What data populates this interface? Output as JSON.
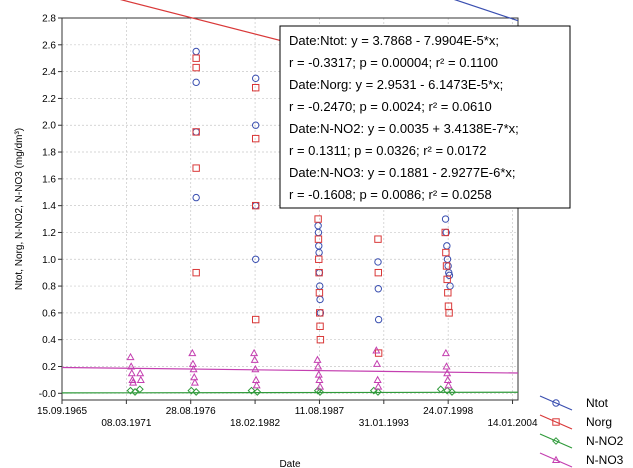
{
  "chart_data": {
    "type": "scatter",
    "xlabel": "Date",
    "ylabel": "Ntot, Norg, N-NO2, N-NO3 (mg/dm³)",
    "ylim": [
      -0.05,
      2.8
    ],
    "xlim_days": [
      -1569,
      12601
    ],
    "grid": true,
    "legend_position": "bottom-right",
    "x_ticks_top_row": [
      {
        "label": "15.09.1965",
        "x_day": -1569
      },
      {
        "label": "28.08.1976",
        "x_day": 2431
      },
      {
        "label": "11.08.1987",
        "x_day": 6431
      },
      {
        "label": "24.07.1998",
        "x_day": 10431
      }
    ],
    "x_ticks_bottom_row": [
      {
        "label": "08.03.1971",
        "x_day": 431
      },
      {
        "label": "18.02.1982",
        "x_day": 4431
      },
      {
        "label": "31.01.1993",
        "x_day": 8431
      },
      {
        "label": "14.01.2004",
        "x_day": 12431
      }
    ],
    "y_ticks": [
      "-0.0",
      "0.2",
      "0.4",
      "0.6",
      "0.8",
      "1.0",
      "1.2",
      "1.4",
      "1.6",
      "1.8",
      "2.0",
      "2.2",
      "2.4",
      "2.6",
      "2.8"
    ],
    "y_tick_values": [
      0,
      0.2,
      0.4,
      0.6,
      0.8,
      1.0,
      1.2,
      1.4,
      1.6,
      1.8,
      2.0,
      2.2,
      2.4,
      2.6,
      2.8
    ],
    "series": [
      {
        "name": "Ntot",
        "marker": "circle",
        "color": "#3a4fb0",
        "fit": {
          "intercept": 3.7868,
          "slope": -7.9904e-05
        },
        "points": [
          [
            2600,
            2.55
          ],
          [
            2600,
            2.32
          ],
          [
            2600,
            1.95
          ],
          [
            2600,
            1.46
          ],
          [
            4450,
            2.35
          ],
          [
            4450,
            2.0
          ],
          [
            4450,
            1.4
          ],
          [
            4450,
            1.0
          ],
          [
            6390,
            1.25
          ],
          [
            6400,
            1.2
          ],
          [
            6410,
            1.1
          ],
          [
            6420,
            1.05
          ],
          [
            6430,
            0.9
          ],
          [
            6440,
            0.8
          ],
          [
            6450,
            0.7
          ],
          [
            6460,
            0.6
          ],
          [
            8250,
            0.98
          ],
          [
            8260,
            0.78
          ],
          [
            8270,
            0.55
          ],
          [
            10350,
            1.3
          ],
          [
            10370,
            1.2
          ],
          [
            10390,
            1.1
          ],
          [
            10410,
            1.0
          ],
          [
            10430,
            0.95
          ],
          [
            10450,
            0.9
          ],
          [
            10470,
            0.88
          ],
          [
            10490,
            0.8
          ]
        ]
      },
      {
        "name": "Norg",
        "marker": "square",
        "color": "#d93838",
        "fit": {
          "intercept": 2.9531,
          "slope": -6.1473e-05
        },
        "points": [
          [
            2600,
            2.5
          ],
          [
            2600,
            2.43
          ],
          [
            2600,
            1.95
          ],
          [
            2600,
            1.68
          ],
          [
            2600,
            0.9
          ],
          [
            4450,
            2.28
          ],
          [
            4450,
            1.9
          ],
          [
            4450,
            1.4
          ],
          [
            4450,
            0.55
          ],
          [
            6390,
            1.3
          ],
          [
            6400,
            1.15
          ],
          [
            6410,
            1.0
          ],
          [
            6420,
            0.9
          ],
          [
            6430,
            0.75
          ],
          [
            6440,
            0.6
          ],
          [
            6450,
            0.5
          ],
          [
            6460,
            0.4
          ],
          [
            8250,
            1.15
          ],
          [
            8260,
            0.9
          ],
          [
            8270,
            0.3
          ],
          [
            10340,
            1.2
          ],
          [
            10360,
            1.05
          ],
          [
            10380,
            0.95
          ],
          [
            10400,
            0.85
          ],
          [
            10420,
            0.75
          ],
          [
            10440,
            0.65
          ],
          [
            10460,
            0.6
          ]
        ]
      },
      {
        "name": "N-NO2",
        "marker": "diamond",
        "color": "#2f9a3a",
        "fit": {
          "intercept": 0.0035,
          "slope": 3.4138e-07
        },
        "points": [
          [
            560,
            0.02
          ],
          [
            700,
            0.01
          ],
          [
            850,
            0.03
          ],
          [
            2450,
            0.02
          ],
          [
            2600,
            0.01
          ],
          [
            4320,
            0.02
          ],
          [
            4500,
            0.01
          ],
          [
            6380,
            0.02
          ],
          [
            6450,
            0.01
          ],
          [
            8120,
            0.02
          ],
          [
            8250,
            0.01
          ],
          [
            10200,
            0.03
          ],
          [
            10400,
            0.02
          ],
          [
            10550,
            0.01
          ]
        ]
      },
      {
        "name": "N-NO3",
        "marker": "triangle",
        "color": "#c43fb0",
        "fit": {
          "intercept": 0.1881,
          "slope": -2.9277e-06
        },
        "points": [
          [
            560,
            0.27
          ],
          [
            580,
            0.2
          ],
          [
            600,
            0.15
          ],
          [
            620,
            0.1
          ],
          [
            640,
            0.08
          ],
          [
            860,
            0.15
          ],
          [
            880,
            0.1
          ],
          [
            2480,
            0.3
          ],
          [
            2500,
            0.22
          ],
          [
            2520,
            0.18
          ],
          [
            2540,
            0.12
          ],
          [
            2560,
            0.08
          ],
          [
            4400,
            0.3
          ],
          [
            4420,
            0.25
          ],
          [
            4440,
            0.18
          ],
          [
            4460,
            0.1
          ],
          [
            4480,
            0.06
          ],
          [
            6370,
            0.25
          ],
          [
            6390,
            0.2
          ],
          [
            6410,
            0.14
          ],
          [
            6430,
            0.1
          ],
          [
            6450,
            0.05
          ],
          [
            8200,
            0.32
          ],
          [
            8220,
            0.22
          ],
          [
            8240,
            0.1
          ],
          [
            8260,
            0.05
          ],
          [
            10360,
            0.3
          ],
          [
            10380,
            0.2
          ],
          [
            10400,
            0.15
          ],
          [
            10420,
            0.1
          ],
          [
            10440,
            0.06
          ]
        ]
      }
    ],
    "annotations": [
      "Date:Ntot:   y = 3.7868 - 7.9904E-5*x;",
      "r = -0.3317; p = 0.00004; r² = 0.1100",
      "Date:Norg:   y = 2.9531 - 6.1473E-5*x;",
      "r = -0.2470; p = 0.0024; r² = 0.0610",
      "Date:N-NO2:   y = 0.0035 + 3.4138E-7*x;",
      "r = 0.1311; p = 0.0326; r² = 0.0172",
      "Date:N-NO3:   y = 0.1881 - 2.9277E-6*x;",
      "r = -0.1608; p = 0.0086; r² = 0.0258"
    ]
  }
}
